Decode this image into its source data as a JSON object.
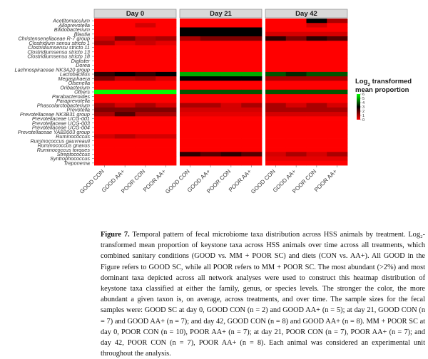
{
  "figure": {
    "label": "Figure 7.",
    "caption": " Temporal pattern of fecal microbiome taxa distribution across HSS animals by treatment. Log₂-transformed mean proportion of keystone taxa across HSS animals over time across all treatments, which combined sanitary conditions (GOOD vs. MM + POOR SC) and diets (CON vs. AA+). All GOOD in the Figure refers to GOOD SC, while all POOR refers to MM + POOR SC. The most abundant (>2%) and most dominant taxa depicted across all network analyses were used to construct this heatmap distribution of keystone taxa classified at either the family, genus, or species levels. The stronger the color, the more abundant a given taxon is, on average, across treatments, and over time. The sample sizes for the fecal samples were: GOOD SC at day 0, GOOD CON (n = 2) and GOOD AA+ (n = 5); at day 21, GOOD CON (n = 7) and GOOD AA+ (n = 7); and day 42, GOOD CON (n = 8) and GOOD AA+ (n = 8). MM + POOR SC at day 0, POOR CON (n = 10), POOR AA+ (n = 7); at day 21, POOR CON (n = 7), POOR AA+ (n = 7); and day 42, POOR CON (n = 7), POOR AA+ (n = 8). Each animal was considered an experimental unit throughout the analysis."
  },
  "chart_data": {
    "type": "heatmap",
    "panels": [
      "Day 0",
      "Day 21",
      "Day 42"
    ],
    "columns": [
      "GOOD CON",
      "GOOD AA+",
      "POOR CON",
      "POOR AA+"
    ],
    "legend": {
      "title_line1": "Log",
      "title_sub": "2",
      "title_rest": " transformed",
      "title_line2": "mean proportion",
      "ticks": [
        6,
        5,
        4,
        3,
        2,
        1,
        0
      ],
      "range": [
        0,
        6
      ],
      "colors": {
        "low": "#ff0000",
        "mid": "#000000",
        "high": "#00ff00"
      }
    },
    "rows": [
      {
        "taxon": "Acetitomaculum",
        "values": [
          0,
          0,
          0,
          0,
          0,
          0,
          0,
          0,
          0,
          0,
          3,
          1
        ]
      },
      {
        "taxon": "Alloprevotella",
        "values": [
          0,
          0,
          0.5,
          0,
          0,
          0,
          0,
          0,
          0,
          0,
          0.5,
          0
        ]
      },
      {
        "taxon": "Bifidobacterium",
        "values": [
          0,
          0,
          0,
          0,
          3,
          3,
          3,
          3,
          0,
          0,
          0,
          0
        ]
      },
      {
        "taxon": "Blautia",
        "values": [
          0,
          0,
          0,
          0,
          3,
          3,
          3,
          3,
          0.5,
          0.5,
          0.5,
          0.5
        ]
      },
      {
        "taxon": "Christensenellaceae R-7 group",
        "values": [
          0.5,
          1.5,
          0.8,
          1,
          1,
          1.5,
          1.5,
          1.5,
          2.5,
          1.5,
          2.5,
          2
        ]
      },
      {
        "taxon": "Clostridium sensu stricto 1",
        "values": [
          1,
          0.3,
          0.6,
          0.3,
          0,
          0,
          0,
          0,
          0,
          0,
          0,
          0
        ]
      },
      {
        "taxon": "Clostridiumsensu stricto 11",
        "values": [
          0,
          0,
          0,
          0,
          0,
          0,
          0,
          0,
          0,
          0,
          0,
          0
        ]
      },
      {
        "taxon": "Clostridiumsensu stricto 13",
        "values": [
          0,
          0,
          0,
          0,
          0,
          0,
          0,
          0,
          0,
          0,
          0,
          0
        ]
      },
      {
        "taxon": "Clostridiumsensu stricto 18",
        "values": [
          0,
          0,
          0,
          0,
          0,
          0,
          0,
          0,
          0,
          0,
          0,
          0
        ]
      },
      {
        "taxon": "Dialister",
        "values": [
          0,
          0,
          0,
          0,
          0,
          0,
          0,
          0,
          0,
          0,
          0,
          0
        ]
      },
      {
        "taxon": "Dorea",
        "values": [
          0,
          0,
          0,
          0,
          0,
          0,
          0,
          0,
          0,
          0,
          0,
          0
        ]
      },
      {
        "taxon": "Lachnospiraceae NK3A20 group",
        "values": [
          0,
          0,
          0,
          0,
          0,
          0,
          0,
          0,
          0,
          0,
          0,
          0
        ]
      },
      {
        "taxon": "Lactobacillus",
        "values": [
          2.5,
          3,
          2.5,
          3,
          5,
          5,
          5,
          5,
          4,
          3.5,
          4,
          4
        ]
      },
      {
        "taxon": "Megasphaera",
        "values": [
          1.5,
          0.8,
          1,
          0.5,
          3,
          3,
          3,
          3,
          1,
          1,
          1,
          1
        ]
      },
      {
        "taxon": "Olsenella",
        "values": [
          0,
          0,
          0,
          0,
          0,
          0,
          0,
          0,
          0,
          0,
          0,
          0
        ]
      },
      {
        "taxon": "Oribacterium",
        "values": [
          0,
          0,
          0,
          0,
          0,
          0,
          0,
          0,
          0,
          0,
          0,
          0
        ]
      },
      {
        "taxon": "Others",
        "values": [
          6,
          6,
          6,
          6,
          4,
          4,
          4,
          4,
          4,
          4,
          4,
          4
        ]
      },
      {
        "taxon": "Parabacteroides",
        "values": [
          0,
          0,
          0,
          0,
          0,
          0,
          0,
          0,
          0,
          0,
          0,
          0
        ]
      },
      {
        "taxon": "Paraprevotella",
        "values": [
          0,
          0,
          0,
          0,
          0,
          0,
          0,
          0,
          0,
          0,
          0,
          0
        ]
      },
      {
        "taxon": "Phascolarctobacterium",
        "values": [
          1,
          0.5,
          1,
          0.5,
          1,
          1,
          0.5,
          1,
          1,
          0.5,
          1,
          0.5
        ]
      },
      {
        "taxon": "Prevotella",
        "values": [
          1.5,
          1.5,
          1.5,
          1.5,
          0.5,
          0.5,
          0.5,
          0.5,
          1,
          1,
          1,
          1
        ]
      },
      {
        "taxon": "Prevotellaceae NK3B31 group",
        "values": [
          1,
          2,
          1,
          1,
          0.3,
          0.3,
          0.3,
          0.3,
          0.5,
          0.5,
          0.5,
          0.5
        ]
      },
      {
        "taxon": "Prevotellaceae UCG-001",
        "values": [
          0,
          0,
          0,
          0,
          0,
          0,
          0,
          0,
          0,
          0,
          0,
          0
        ]
      },
      {
        "taxon": "Prevotellaceae UCG-003",
        "values": [
          0,
          0,
          0,
          0,
          0,
          0,
          0,
          0,
          0,
          0,
          0,
          0
        ]
      },
      {
        "taxon": "Prevotellaceae UCG-004",
        "values": [
          0,
          0,
          0,
          0,
          0,
          0,
          0,
          0,
          0,
          0,
          0,
          0
        ]
      },
      {
        "taxon": "Prevotellaceae YAB2003 group",
        "values": [
          0,
          0,
          0,
          0,
          0,
          0,
          0,
          0,
          0,
          0,
          0,
          0
        ]
      },
      {
        "taxon": "Ruminococcus",
        "values": [
          0.5,
          0.8,
          0.5,
          0.5,
          0,
          0,
          0,
          0,
          0,
          0,
          0,
          0
        ]
      },
      {
        "taxon": "Ruminococcus gauvreauii",
        "values": [
          0,
          0,
          0,
          0,
          0,
          0,
          0,
          0,
          0,
          0,
          0,
          0
        ]
      },
      {
        "taxon": "Ruminococcus gnavus",
        "values": [
          0,
          0,
          0,
          0,
          0,
          0,
          0,
          0,
          0,
          0,
          0,
          0
        ]
      },
      {
        "taxon": "Ruminococcus torques",
        "values": [
          0,
          0,
          0,
          0,
          0,
          0,
          0,
          0,
          0,
          0,
          0,
          0
        ]
      },
      {
        "taxon": "Streptococcus",
        "values": [
          0,
          0,
          0,
          0,
          2.5,
          2,
          2.5,
          2,
          0.5,
          1,
          0.5,
          1
        ]
      },
      {
        "taxon": "Syntrophococcus",
        "values": [
          0,
          0,
          0,
          0,
          0,
          0,
          0,
          0,
          0.3,
          0.3,
          0.3,
          0.3
        ]
      },
      {
        "taxon": "Treponema",
        "values": [
          0,
          0,
          0,
          0,
          0,
          0,
          0,
          0,
          0,
          0,
          0,
          0
        ]
      }
    ]
  }
}
